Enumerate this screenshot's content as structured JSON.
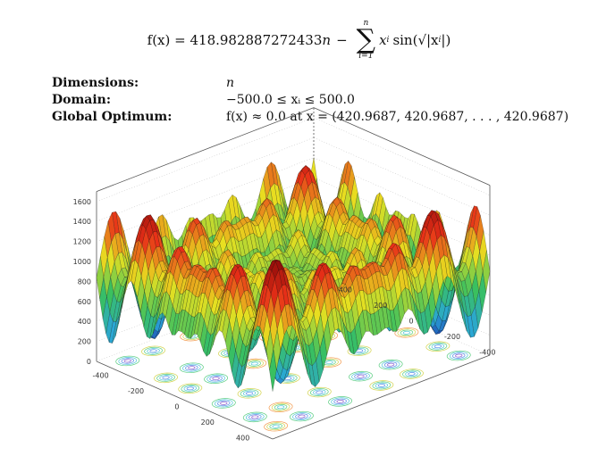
{
  "formula": {
    "lhs": "f(x) = 418.982887272433",
    "n": "n",
    "minus": "−",
    "sum_upper": "n",
    "sum_lower": "i=1",
    "term": "x",
    "term_sub": "i",
    "sin": "sin(√|x",
    "close": "|)"
  },
  "properties": [
    {
      "label": "Dimensions:",
      "value": "n"
    },
    {
      "label": "Domain:",
      "value": "−500.0 ≤ xᵢ ≤ 500.0"
    },
    {
      "label": "Global Optimum:",
      "value": "f(x) ≈ 0.0 at x = (420.9687, 420.9687, . . . , 420.9687)"
    }
  ],
  "chart_data": {
    "type": "surface3d",
    "title": "",
    "z_ticks": [
      "0",
      "200",
      "400",
      "600",
      "800",
      "1000",
      "1200",
      "1400",
      "1600"
    ],
    "x_ticks": [
      "-400",
      "-200",
      "0",
      "200",
      "400"
    ],
    "y_ticks": [
      "-400",
      "-200",
      "0",
      "200",
      "400"
    ],
    "zlim": [
      0,
      1700
    ],
    "xlim": [
      -500,
      500
    ],
    "ylim": [
      -500,
      500
    ],
    "colormap": [
      "#1a1aa0",
      "#2aa6d8",
      "#38c060",
      "#e8e020",
      "#e83018",
      "#8a0808"
    ]
  }
}
